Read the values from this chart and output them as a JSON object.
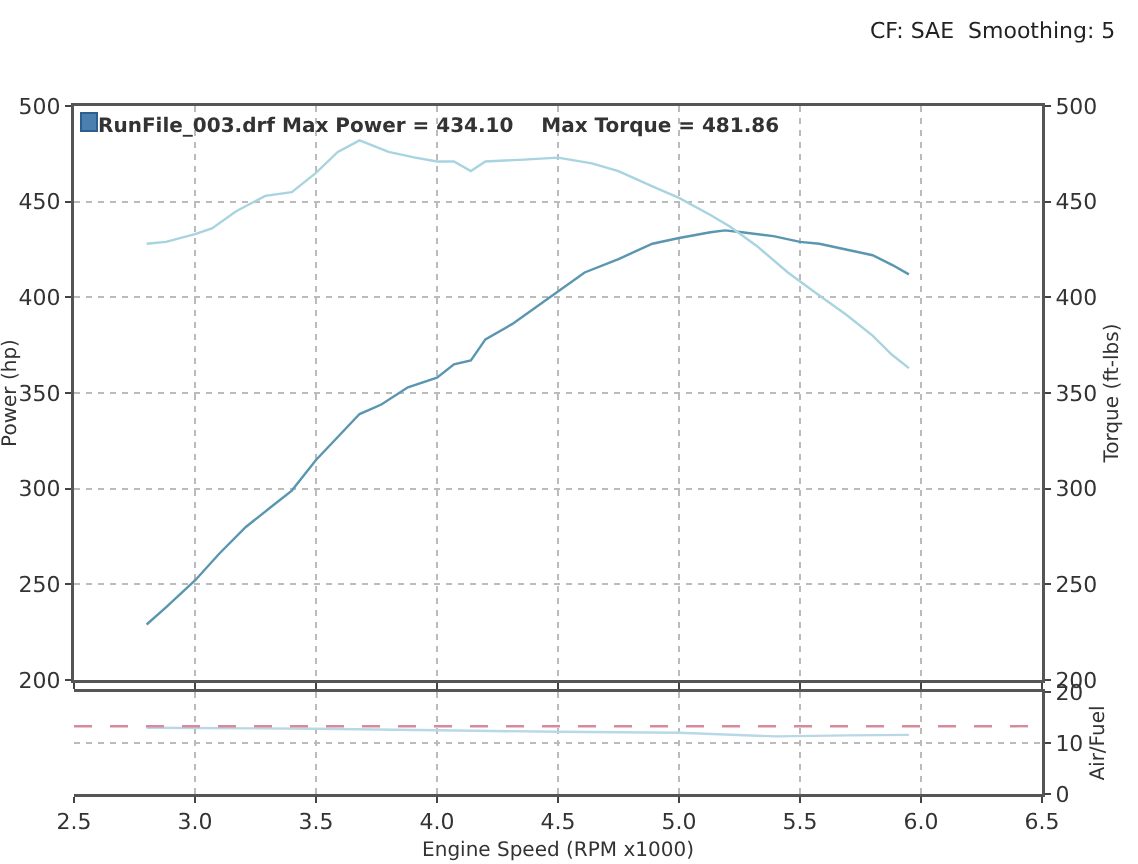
{
  "chart_data": [
    {
      "type": "line",
      "annotations": [
        "CF: SAE  Smoothing: 5",
        "RunFile_003.drf Max Power = 434.10    Max Torque = 481.86"
      ],
      "ylabel": "Power (hp)",
      "y2label": "Torque (ft-lbs)",
      "xlim": [
        2.5,
        6.5
      ],
      "xticks": [
        2.5,
        3.0,
        3.5,
        4.0,
        4.5,
        5.0,
        5.5,
        6.0,
        6.5
      ],
      "ylim": [
        200,
        500
      ],
      "yticks": [
        200,
        250,
        300,
        350,
        400,
        450,
        500
      ],
      "y2lim": [
        200,
        500
      ],
      "y2ticks": [
        200,
        250,
        300,
        350,
        400,
        450,
        500
      ],
      "grid": true,
      "tick_labels": "y",
      "line_style": "solid",
      "series": [
        {
          "color": "#5a96b0",
          "axis": "y",
          "x": [
            2.8,
            2.88,
            3.0,
            3.1,
            3.21,
            3.31,
            3.4,
            3.5,
            3.59,
            3.68,
            3.77,
            3.88,
            4.0,
            4.07,
            4.14,
            4.2,
            4.31,
            4.5,
            4.61,
            4.75,
            4.89,
            5.0,
            5.13,
            5.19,
            5.26,
            5.39,
            5.5,
            5.58,
            5.69,
            5.8,
            5.88,
            5.95
          ],
          "values": [
            229,
            238,
            252,
            266,
            280,
            290,
            299,
            315,
            327,
            339,
            344,
            353,
            358,
            365,
            367,
            378,
            386,
            403,
            413,
            420,
            428,
            431,
            434,
            435,
            434,
            432,
            429,
            428,
            425,
            422,
            417,
            412
          ]
        },
        {
          "color": "#a8d4e0",
          "axis": "y2",
          "x": [
            2.8,
            2.88,
            3.0,
            3.07,
            3.17,
            3.29,
            3.4,
            3.5,
            3.59,
            3.68,
            3.8,
            3.91,
            4.0,
            4.07,
            4.14,
            4.2,
            4.36,
            4.5,
            4.64,
            4.75,
            4.89,
            5.0,
            5.13,
            5.21,
            5.32,
            5.45,
            5.58,
            5.69,
            5.8,
            5.88,
            5.95
          ],
          "values": [
            428,
            429,
            433,
            436,
            445,
            453,
            455,
            465,
            476,
            482,
            476,
            473,
            471,
            471,
            466,
            471,
            472,
            473,
            470,
            466,
            458,
            452,
            443,
            437,
            427,
            413,
            401,
            391,
            380,
            370,
            363
          ]
        }
      ]
    },
    {
      "type": "line",
      "xlabel": "Engine Speed (RPM x1000)",
      "y2label": "Air/Fuel",
      "xlim": [
        2.5,
        6.5
      ],
      "xticks": [
        2.5,
        {
          "value": 3,
          "label": "3.0"
        },
        3.5,
        {
          "value": 4,
          "label": "4.0"
        },
        4.5,
        {
          "value": 5,
          "label": "5.0"
        },
        5.5,
        {
          "value": 6,
          "label": "6.0"
        },
        6.5
      ],
      "y2lim": [
        0,
        20
      ],
      "y2ticks": [
        0,
        10,
        20
      ],
      "grid": true,
      "line_style": "solid",
      "ref_lines": [
        {
          "axis": "y2",
          "value": 13.3,
          "color": "#d88a9a",
          "line_style": "dashed"
        }
      ],
      "series": [
        {
          "color": "#b8d8e8",
          "axis": "y2",
          "x": [
            2.8,
            3.5,
            4.0,
            4.5,
            5.0,
            5.4,
            5.7,
            5.95
          ],
          "values": [
            13.0,
            12.8,
            12.5,
            12.2,
            12.0,
            11.3,
            11.5,
            11.6
          ]
        }
      ]
    }
  ]
}
